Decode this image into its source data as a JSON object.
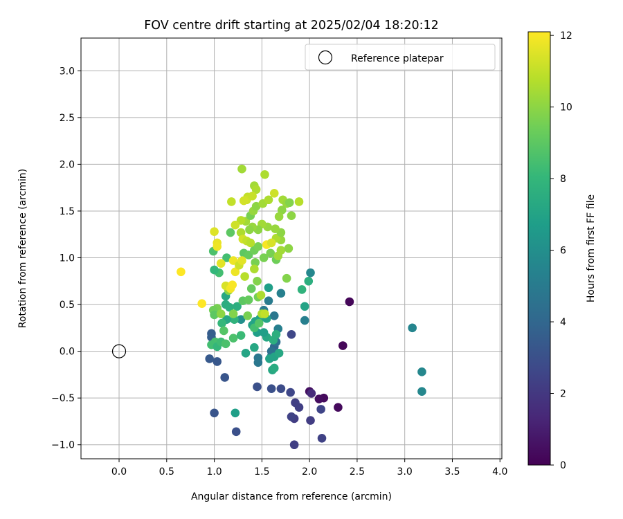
{
  "chart_data": {
    "type": "scatter",
    "title": "FOV centre drift starting at 2025/02/04 18:20:12",
    "xlabel": "Angular distance from reference (arcmin)",
    "ylabel": "Rotation from reference (arcmin)",
    "xlim": [
      -0.4,
      4.02
    ],
    "ylim": [
      -1.15,
      3.35
    ],
    "xticks": [
      0.0,
      0.5,
      1.0,
      1.5,
      2.0,
      2.5,
      3.0,
      3.5,
      4.0
    ],
    "xtick_labels": [
      "0.0",
      "0.5",
      "1.0",
      "1.5",
      "2.0",
      "2.5",
      "3.0",
      "3.5",
      "4.0"
    ],
    "yticks": [
      -1.0,
      -0.5,
      0.0,
      0.5,
      1.0,
      1.5,
      2.0,
      2.5,
      3.0
    ],
    "ytick_labels": [
      "−1.0",
      "−0.5",
      "0.0",
      "0.5",
      "1.0",
      "1.5",
      "2.0",
      "2.5",
      "3.0"
    ],
    "grid": true,
    "legend": {
      "position": "top-right",
      "entries": [
        "Reference platepar"
      ]
    },
    "reference_point": {
      "name": "Reference platepar",
      "x": 0.0,
      "y": 0.0
    },
    "colorbar": {
      "label": "Hours from first FF file",
      "colormap": "viridis",
      "range": [
        0,
        12.1
      ],
      "ticks": [
        0,
        2,
        4,
        6,
        8,
        10,
        12
      ],
      "tick_labels": [
        "0",
        "2",
        "4",
        "6",
        "8",
        "10",
        "12"
      ]
    },
    "colormap_stops": [
      "#440154",
      "#482878",
      "#3e4989",
      "#31688e",
      "#26828e",
      "#1f9e89",
      "#35b779",
      "#6ece58",
      "#b5de2b",
      "#fde725"
    ],
    "points": [
      {
        "x": 2.42,
        "y": 0.53,
        "h": 0.2
      },
      {
        "x": 2.35,
        "y": 0.06,
        "h": 0.2
      },
      {
        "x": 2.3,
        "y": -0.6,
        "h": 0.3
      },
      {
        "x": 2.15,
        "y": -0.5,
        "h": 0.3
      },
      {
        "x": 2.1,
        "y": -0.51,
        "h": 0.4
      },
      {
        "x": 2.0,
        "y": -0.43,
        "h": 0.5
      },
      {
        "x": 2.02,
        "y": -0.45,
        "h": 1.5
      },
      {
        "x": 2.12,
        "y": -0.62,
        "h": 2.5
      },
      {
        "x": 2.13,
        "y": -0.93,
        "h": 2.4
      },
      {
        "x": 2.01,
        "y": -0.74,
        "h": 2.2
      },
      {
        "x": 1.84,
        "y": -1.0,
        "h": 2.3
      },
      {
        "x": 1.84,
        "y": -0.72,
        "h": 2.2
      },
      {
        "x": 1.81,
        "y": -0.7,
        "h": 2.4
      },
      {
        "x": 1.89,
        "y": -0.6,
        "h": 2.3
      },
      {
        "x": 1.85,
        "y": -0.55,
        "h": 2.3
      },
      {
        "x": 1.8,
        "y": -0.44,
        "h": 2.6
      },
      {
        "x": 1.7,
        "y": -0.4,
        "h": 2.8
      },
      {
        "x": 1.6,
        "y": -0.4,
        "h": 3.0
      },
      {
        "x": 1.45,
        "y": -0.38,
        "h": 3.0
      },
      {
        "x": 1.23,
        "y": -0.86,
        "h": 3.0
      },
      {
        "x": 1.0,
        "y": -0.66,
        "h": 3.2
      },
      {
        "x": 1.11,
        "y": -0.28,
        "h": 3.2
      },
      {
        "x": 1.03,
        "y": -0.11,
        "h": 3.3
      },
      {
        "x": 0.95,
        "y": -0.08,
        "h": 3.4
      },
      {
        "x": 0.97,
        "y": 0.19,
        "h": 3.5
      },
      {
        "x": 0.97,
        "y": 0.15,
        "h": 3.6
      },
      {
        "x": 1.81,
        "y": 0.18,
        "h": 2.6
      },
      {
        "x": 3.08,
        "y": 0.25,
        "h": 5.5
      },
      {
        "x": 3.18,
        "y": -0.22,
        "h": 5.6
      },
      {
        "x": 3.18,
        "y": -0.43,
        "h": 5.6
      },
      {
        "x": 1.95,
        "y": 0.33,
        "h": 5.2
      },
      {
        "x": 1.7,
        "y": 0.62,
        "h": 5.3
      },
      {
        "x": 1.63,
        "y": 0.38,
        "h": 4.8
      },
      {
        "x": 1.57,
        "y": 0.54,
        "h": 5.0
      },
      {
        "x": 1.63,
        "y": 0.05,
        "h": 4.0
      },
      {
        "x": 1.6,
        "y": 0.0,
        "h": 4.5
      },
      {
        "x": 1.65,
        "y": 0.1,
        "h": 4.5
      },
      {
        "x": 1.6,
        "y": -0.05,
        "h": 4.6
      },
      {
        "x": 1.46,
        "y": -0.07,
        "h": 4.8
      },
      {
        "x": 1.46,
        "y": -0.12,
        "h": 4.8
      },
      {
        "x": 1.52,
        "y": 0.44,
        "h": 5.0
      },
      {
        "x": 1.67,
        "y": 0.24,
        "h": 5.2
      },
      {
        "x": 1.22,
        "y": -0.66,
        "h": 6.8
      },
      {
        "x": 1.33,
        "y": -0.02,
        "h": 7.1
      },
      {
        "x": 1.42,
        "y": 0.04,
        "h": 7.2
      },
      {
        "x": 1.61,
        "y": -0.2,
        "h": 7.2
      },
      {
        "x": 1.63,
        "y": -0.18,
        "h": 7.4
      },
      {
        "x": 1.58,
        "y": -0.08,
        "h": 7.0
      },
      {
        "x": 1.63,
        "y": -0.06,
        "h": 7.0
      },
      {
        "x": 1.68,
        "y": -0.02,
        "h": 7.2
      },
      {
        "x": 1.55,
        "y": 0.15,
        "h": 7.2
      },
      {
        "x": 1.52,
        "y": 0.2,
        "h": 6.8
      },
      {
        "x": 1.45,
        "y": 0.2,
        "h": 6.8
      },
      {
        "x": 1.4,
        "y": 0.28,
        "h": 7.0
      },
      {
        "x": 1.43,
        "y": 0.32,
        "h": 7.0
      },
      {
        "x": 1.48,
        "y": 0.35,
        "h": 7.0
      },
      {
        "x": 1.55,
        "y": 0.35,
        "h": 7.0
      },
      {
        "x": 1.62,
        "y": 0.12,
        "h": 7.6
      },
      {
        "x": 1.65,
        "y": 0.18,
        "h": 7.6
      },
      {
        "x": 1.57,
        "y": 0.68,
        "h": 6.8
      },
      {
        "x": 1.95,
        "y": 0.48,
        "h": 7.0
      },
      {
        "x": 1.99,
        "y": 0.75,
        "h": 7.6
      },
      {
        "x": 2.01,
        "y": 0.84,
        "h": 5.6
      },
      {
        "x": 1.92,
        "y": 0.66,
        "h": 7.8
      },
      {
        "x": 1.28,
        "y": 0.34,
        "h": 6.0
      },
      {
        "x": 1.21,
        "y": 0.34,
        "h": 7.8
      },
      {
        "x": 1.13,
        "y": 0.34,
        "h": 7.2
      },
      {
        "x": 1.08,
        "y": 0.3,
        "h": 8.0
      },
      {
        "x": 1.01,
        "y": 0.1,
        "h": 8.5
      },
      {
        "x": 0.97,
        "y": 0.07,
        "h": 8.4
      },
      {
        "x": 1.03,
        "y": 0.05,
        "h": 8.0
      },
      {
        "x": 1.07,
        "y": 0.1,
        "h": 8.3
      },
      {
        "x": 1.12,
        "y": 0.08,
        "h": 8.6
      },
      {
        "x": 1.2,
        "y": 0.14,
        "h": 8.6
      },
      {
        "x": 1.28,
        "y": 0.17,
        "h": 8.2
      },
      {
        "x": 1.1,
        "y": 0.22,
        "h": 8.8
      },
      {
        "x": 1.12,
        "y": 0.5,
        "h": 7.5
      },
      {
        "x": 1.12,
        "y": 0.59,
        "h": 7.2
      },
      {
        "x": 1.16,
        "y": 0.47,
        "h": 7.6
      },
      {
        "x": 1.24,
        "y": 0.48,
        "h": 7.6
      },
      {
        "x": 1.3,
        "y": 0.54,
        "h": 9.0
      },
      {
        "x": 1.36,
        "y": 0.55,
        "h": 9.2
      },
      {
        "x": 1.39,
        "y": 0.67,
        "h": 9.2
      },
      {
        "x": 1.46,
        "y": 0.58,
        "h": 9.5
      },
      {
        "x": 1.5,
        "y": 0.4,
        "h": 10.6
      },
      {
        "x": 1.76,
        "y": 0.78,
        "h": 9.8
      },
      {
        "x": 1.45,
        "y": 0.75,
        "h": 9.8
      },
      {
        "x": 1.15,
        "y": 0.65,
        "h": 9.9
      },
      {
        "x": 1.03,
        "y": 0.46,
        "h": 9.6
      },
      {
        "x": 0.99,
        "y": 0.44,
        "h": 9.4
      },
      {
        "x": 1.0,
        "y": 0.39,
        "h": 9.0
      },
      {
        "x": 1.07,
        "y": 0.4,
        "h": 10.0
      },
      {
        "x": 1.2,
        "y": 0.4,
        "h": 9.8
      },
      {
        "x": 1.35,
        "y": 0.38,
        "h": 9.6
      },
      {
        "x": 1.42,
        "y": 0.25,
        "h": 8.4
      },
      {
        "x": 1.47,
        "y": 0.3,
        "h": 8.8
      },
      {
        "x": 1.05,
        "y": 0.84,
        "h": 8.4
      },
      {
        "x": 1.0,
        "y": 0.87,
        "h": 8.0
      },
      {
        "x": 0.99,
        "y": 1.07,
        "h": 8.6
      },
      {
        "x": 1.13,
        "y": 1.0,
        "h": 8.4
      },
      {
        "x": 1.17,
        "y": 1.27,
        "h": 9.0
      },
      {
        "x": 1.28,
        "y": 1.27,
        "h": 10.6
      },
      {
        "x": 1.31,
        "y": 1.05,
        "h": 9.0
      },
      {
        "x": 1.36,
        "y": 1.03,
        "h": 9.2
      },
      {
        "x": 1.43,
        "y": 0.95,
        "h": 9.6
      },
      {
        "x": 1.42,
        "y": 1.08,
        "h": 9.4
      },
      {
        "x": 1.46,
        "y": 1.12,
        "h": 9.6
      },
      {
        "x": 1.52,
        "y": 1.0,
        "h": 9.6
      },
      {
        "x": 1.59,
        "y": 1.05,
        "h": 9.6
      },
      {
        "x": 1.65,
        "y": 0.98,
        "h": 9.4
      },
      {
        "x": 1.67,
        "y": 1.02,
        "h": 10.4
      },
      {
        "x": 1.7,
        "y": 1.08,
        "h": 10.4
      },
      {
        "x": 1.78,
        "y": 1.1,
        "h": 10.0
      },
      {
        "x": 1.7,
        "y": 1.19,
        "h": 10.2
      },
      {
        "x": 1.65,
        "y": 1.21,
        "h": 10.6
      },
      {
        "x": 1.7,
        "y": 1.27,
        "h": 10.0
      },
      {
        "x": 1.64,
        "y": 1.31,
        "h": 10.2
      },
      {
        "x": 1.56,
        "y": 1.33,
        "h": 10.2
      },
      {
        "x": 1.5,
        "y": 1.36,
        "h": 10.4
      },
      {
        "x": 1.46,
        "y": 1.3,
        "h": 10.0
      },
      {
        "x": 1.4,
        "y": 1.33,
        "h": 10.2
      },
      {
        "x": 1.37,
        "y": 1.3,
        "h": 10.0
      },
      {
        "x": 1.33,
        "y": 1.39,
        "h": 10.4
      },
      {
        "x": 1.28,
        "y": 1.4,
        "h": 10.8
      },
      {
        "x": 1.22,
        "y": 1.35,
        "h": 11.2
      },
      {
        "x": 1.38,
        "y": 1.45,
        "h": 9.6
      },
      {
        "x": 1.41,
        "y": 1.5,
        "h": 10.2
      },
      {
        "x": 1.44,
        "y": 1.55,
        "h": 10.0
      },
      {
        "x": 1.51,
        "y": 1.58,
        "h": 10.4
      },
      {
        "x": 1.57,
        "y": 1.62,
        "h": 10.6
      },
      {
        "x": 1.63,
        "y": 1.69,
        "h": 11.2
      },
      {
        "x": 1.72,
        "y": 1.62,
        "h": 10.4
      },
      {
        "x": 1.76,
        "y": 1.58,
        "h": 10.2
      },
      {
        "x": 1.79,
        "y": 1.59,
        "h": 9.8
      },
      {
        "x": 1.71,
        "y": 1.51,
        "h": 10.0
      },
      {
        "x": 1.68,
        "y": 1.44,
        "h": 10.2
      },
      {
        "x": 1.81,
        "y": 1.45,
        "h": 10.0
      },
      {
        "x": 1.89,
        "y": 1.6,
        "h": 10.8
      },
      {
        "x": 1.42,
        "y": 1.77,
        "h": 10.4
      },
      {
        "x": 1.44,
        "y": 1.73,
        "h": 10.6
      },
      {
        "x": 1.35,
        "y": 1.65,
        "h": 11.0
      },
      {
        "x": 1.34,
        "y": 1.62,
        "h": 11.2
      },
      {
        "x": 1.31,
        "y": 1.61,
        "h": 11.3
      },
      {
        "x": 1.18,
        "y": 1.6,
        "h": 11.0
      },
      {
        "x": 1.29,
        "y": 1.95,
        "h": 10.4
      },
      {
        "x": 1.53,
        "y": 1.89,
        "h": 10.6
      },
      {
        "x": 1.4,
        "y": 1.66,
        "h": 11.1
      },
      {
        "x": 1.0,
        "y": 1.28,
        "h": 11.5
      },
      {
        "x": 1.03,
        "y": 1.16,
        "h": 11.7
      },
      {
        "x": 1.03,
        "y": 1.12,
        "h": 11.8
      },
      {
        "x": 1.07,
        "y": 0.94,
        "h": 11.6
      },
      {
        "x": 1.12,
        "y": 0.7,
        "h": 11.4
      },
      {
        "x": 1.17,
        "y": 0.67,
        "h": 11.9
      },
      {
        "x": 1.19,
        "y": 0.71,
        "h": 12.0
      },
      {
        "x": 1.22,
        "y": 0.85,
        "h": 11.8
      },
      {
        "x": 1.2,
        "y": 0.97,
        "h": 11.8
      },
      {
        "x": 1.26,
        "y": 0.92,
        "h": 11.2
      },
      {
        "x": 1.29,
        "y": 0.97,
        "h": 11.6
      },
      {
        "x": 1.3,
        "y": 1.2,
        "h": 11.3
      },
      {
        "x": 1.34,
        "y": 1.18,
        "h": 11.0
      },
      {
        "x": 1.38,
        "y": 1.16,
        "h": 10.8
      },
      {
        "x": 1.32,
        "y": 0.8,
        "h": 10.8
      },
      {
        "x": 1.42,
        "y": 0.88,
        "h": 10.6
      },
      {
        "x": 1.49,
        "y": 0.6,
        "h": 10.6
      },
      {
        "x": 1.53,
        "y": 0.4,
        "h": 11.0
      },
      {
        "x": 1.55,
        "y": 1.14,
        "h": 12.0
      },
      {
        "x": 1.6,
        "y": 1.16,
        "h": 11.4
      },
      {
        "x": 0.65,
        "y": 0.85,
        "h": 12.1
      },
      {
        "x": 0.87,
        "y": 0.51,
        "h": 12.1
      }
    ]
  }
}
